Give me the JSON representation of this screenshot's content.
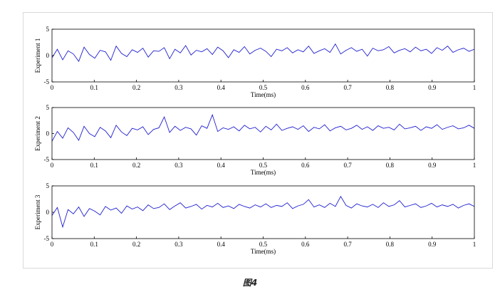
{
  "caption": "图4",
  "colors": {
    "signal": "#1f1fd0",
    "axis": "#000000",
    "frame_border": "#d9d9d9"
  },
  "chart_data": [
    {
      "type": "line",
      "ylabel": "Experiment 1",
      "xlabel": "Time(ms)",
      "xlim": [
        0,
        1
      ],
      "ylim": [
        -5,
        5
      ],
      "xticks": [
        "0",
        "0.1",
        "0.2",
        "0.3",
        "0.4",
        "0.5",
        "0.6",
        "0.7",
        "0.8",
        "0.9",
        "1"
      ],
      "yticks": [
        "-5",
        "0",
        "5"
      ],
      "grid": false,
      "series": [
        {
          "values": [
            -0.4,
            1.2,
            -0.8,
            0.9,
            0.3,
            -1.1,
            1.6,
            0.2,
            -0.5,
            1.0,
            0.7,
            -0.9,
            1.8,
            0.4,
            -0.2,
            1.1,
            0.6,
            1.4,
            -0.3,
            0.9,
            0.8,
            1.5,
            -0.6,
            1.2,
            0.5,
            1.9,
            0.1,
            1.0,
            0.7,
            1.3,
            0.2,
            1.6,
            0.9,
            -0.4,
            1.1,
            0.6,
            1.7,
            0.3,
            1.0,
            1.4,
            0.8,
            -0.2,
            1.2,
            0.9,
            1.5,
            0.5,
            1.1,
            0.7,
            1.8,
            0.4,
            0.9,
            1.3,
            0.6,
            2.2,
            0.3,
            1.0,
            1.5,
            0.8,
            1.2,
            -0.1,
            1.4,
            0.9,
            1.1,
            1.7,
            0.5,
            1.0,
            1.3,
            0.7,
            1.6,
            0.9,
            1.2,
            0.4,
            1.5,
            1.0,
            1.8,
            0.6,
            1.1,
            1.4,
            0.8,
            1.2
          ]
        }
      ]
    },
    {
      "type": "line",
      "ylabel": "Experiment 2",
      "xlabel": "Time(ms)",
      "xlim": [
        0,
        1
      ],
      "ylim": [
        -5,
        5
      ],
      "xticks": [
        "0",
        "0.1",
        "0.2",
        "0.3",
        "0.4",
        "0.5",
        "0.6",
        "0.7",
        "0.8",
        "0.9",
        "1"
      ],
      "yticks": [
        "-5",
        "0",
        "5"
      ],
      "grid": false,
      "series": [
        {
          "values": [
            -1.5,
            0.4,
            -0.9,
            1.1,
            0.2,
            -1.3,
            1.4,
            0.0,
            -0.6,
            1.2,
            0.5,
            -0.8,
            1.6,
            0.3,
            -0.4,
            1.0,
            0.7,
            1.3,
            -0.2,
            0.8,
            1.1,
            3.2,
            0.2,
            1.4,
            0.6,
            1.2,
            0.9,
            -0.3,
            1.5,
            1.0,
            3.6,
            0.4,
            1.1,
            0.8,
            1.3,
            0.5,
            1.6,
            0.9,
            1.2,
            0.3,
            1.4,
            0.7,
            1.8,
            0.6,
            1.0,
            1.3,
            0.8,
            1.5,
            0.4,
            1.2,
            0.9,
            1.7,
            0.5,
            1.1,
            1.4,
            0.7,
            1.0,
            1.6,
            0.8,
            1.3,
            0.6,
            1.5,
            1.0,
            1.2,
            0.7,
            1.8,
            0.9,
            1.1,
            1.4,
            0.6,
            1.3,
            1.0,
            1.7,
            0.8,
            1.2,
            1.5,
            0.9,
            1.1,
            1.6,
            1.0
          ]
        }
      ]
    },
    {
      "type": "line",
      "ylabel": "Experiment 3",
      "xlabel": "Time(ms)",
      "xlim": [
        0,
        1
      ],
      "ylim": [
        -5,
        5
      ],
      "xticks": [
        "0",
        "0.1",
        "0.2",
        "0.3",
        "0.4",
        "0.5",
        "0.6",
        "0.7",
        "0.8",
        "0.9",
        "1"
      ],
      "yticks": [
        "-5",
        "0",
        "5"
      ],
      "grid": false,
      "series": [
        {
          "values": [
            -0.6,
            0.9,
            -2.8,
            0.5,
            -0.3,
            1.0,
            -0.8,
            0.7,
            0.2,
            -0.5,
            1.1,
            0.4,
            0.8,
            -0.2,
            1.2,
            0.6,
            1.0,
            0.3,
            1.4,
            0.7,
            0.9,
            1.6,
            0.5,
            1.2,
            1.8,
            0.8,
            1.1,
            1.5,
            0.6,
            1.3,
            1.0,
            1.7,
            0.9,
            1.2,
            0.7,
            1.5,
            1.1,
            0.8,
            1.4,
            1.0,
            1.6,
            0.9,
            1.3,
            1.1,
            1.8,
            0.7,
            1.2,
            1.5,
            2.4,
            1.0,
            1.4,
            0.9,
            1.7,
            1.1,
            3.0,
            1.3,
            0.8,
            1.6,
            1.2,
            1.0,
            1.5,
            0.9,
            1.8,
            1.1,
            1.4,
            2.2,
            1.0,
            1.3,
            1.6,
            0.9,
            1.2,
            1.7,
            1.0,
            1.4,
            1.1,
            1.5,
            0.8,
            1.3,
            1.6,
            1.1
          ]
        }
      ]
    }
  ]
}
